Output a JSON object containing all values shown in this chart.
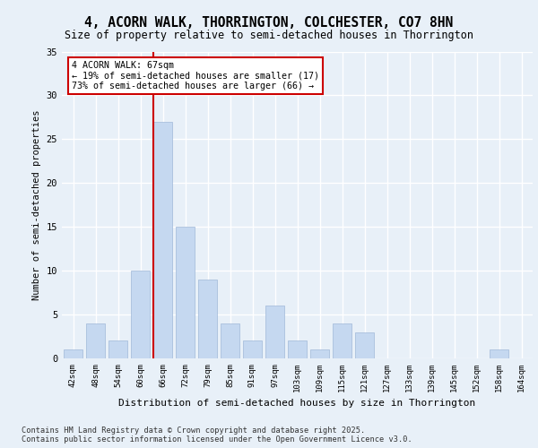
{
  "title1": "4, ACORN WALK, THORRINGTON, COLCHESTER, CO7 8HN",
  "title2": "Size of property relative to semi-detached houses in Thorrington",
  "xlabel": "Distribution of semi-detached houses by size in Thorrington",
  "ylabel": "Number of semi-detached properties",
  "categories": [
    "42sqm",
    "48sqm",
    "54sqm",
    "60sqm",
    "66sqm",
    "72sqm",
    "79sqm",
    "85sqm",
    "91sqm",
    "97sqm",
    "103sqm",
    "109sqm",
    "115sqm",
    "121sqm",
    "127sqm",
    "133sqm",
    "139sqm",
    "145sqm",
    "152sqm",
    "158sqm",
    "164sqm"
  ],
  "values": [
    1,
    4,
    2,
    10,
    27,
    15,
    9,
    4,
    2,
    6,
    2,
    1,
    4,
    3,
    0,
    0,
    0,
    0,
    0,
    1,
    0
  ],
  "bar_color": "#c5d8f0",
  "bar_edge_color": "#a0b8d8",
  "highlight_index": 4,
  "annotation_text": "4 ACORN WALK: 67sqm\n← 19% of semi-detached houses are smaller (17)\n73% of semi-detached houses are larger (66) →",
  "annotation_box_color": "#ffffff",
  "annotation_box_edge": "#cc0000",
  "annotation_text_color": "#000000",
  "vline_color": "#cc0000",
  "background_color": "#e8f0f8",
  "plot_bg_color": "#e8f0f8",
  "grid_color": "#ffffff",
  "ylim": [
    0,
    35
  ],
  "yticks": [
    0,
    5,
    10,
    15,
    20,
    25,
    30,
    35
  ],
  "footer": "Contains HM Land Registry data © Crown copyright and database right 2025.\nContains public sector information licensed under the Open Government Licence v3.0."
}
